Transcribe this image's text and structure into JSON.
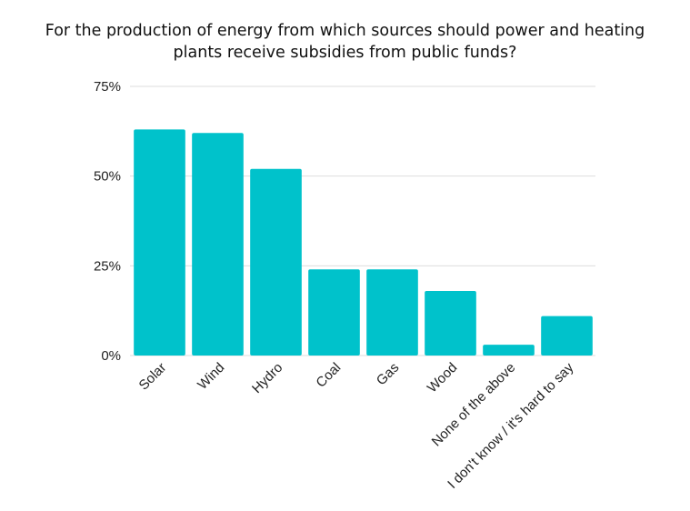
{
  "chart_data": {
    "type": "bar",
    "title_lines": [
      "For the production of energy from which sources should power and heating",
      "plants receive subsidies from public funds?"
    ],
    "categories": [
      "Solar",
      "Wind",
      "Hydro",
      "Coal",
      "Gas",
      "Wood",
      "None of the above",
      "I don't know / it's hard to say"
    ],
    "values": [
      63,
      62,
      52,
      24,
      24,
      18,
      3,
      11
    ],
    "ylim": [
      0,
      75
    ],
    "y_ticks": [
      {
        "value": 0,
        "label": "0%"
      },
      {
        "value": 25,
        "label": "25%"
      },
      {
        "value": 50,
        "label": "50%"
      },
      {
        "value": 75,
        "label": "75%"
      }
    ],
    "xlabel": "",
    "ylabel": "",
    "grid": true,
    "legend": "none",
    "bar_color": "#00c2cb",
    "grid_color": "#dddddd"
  }
}
